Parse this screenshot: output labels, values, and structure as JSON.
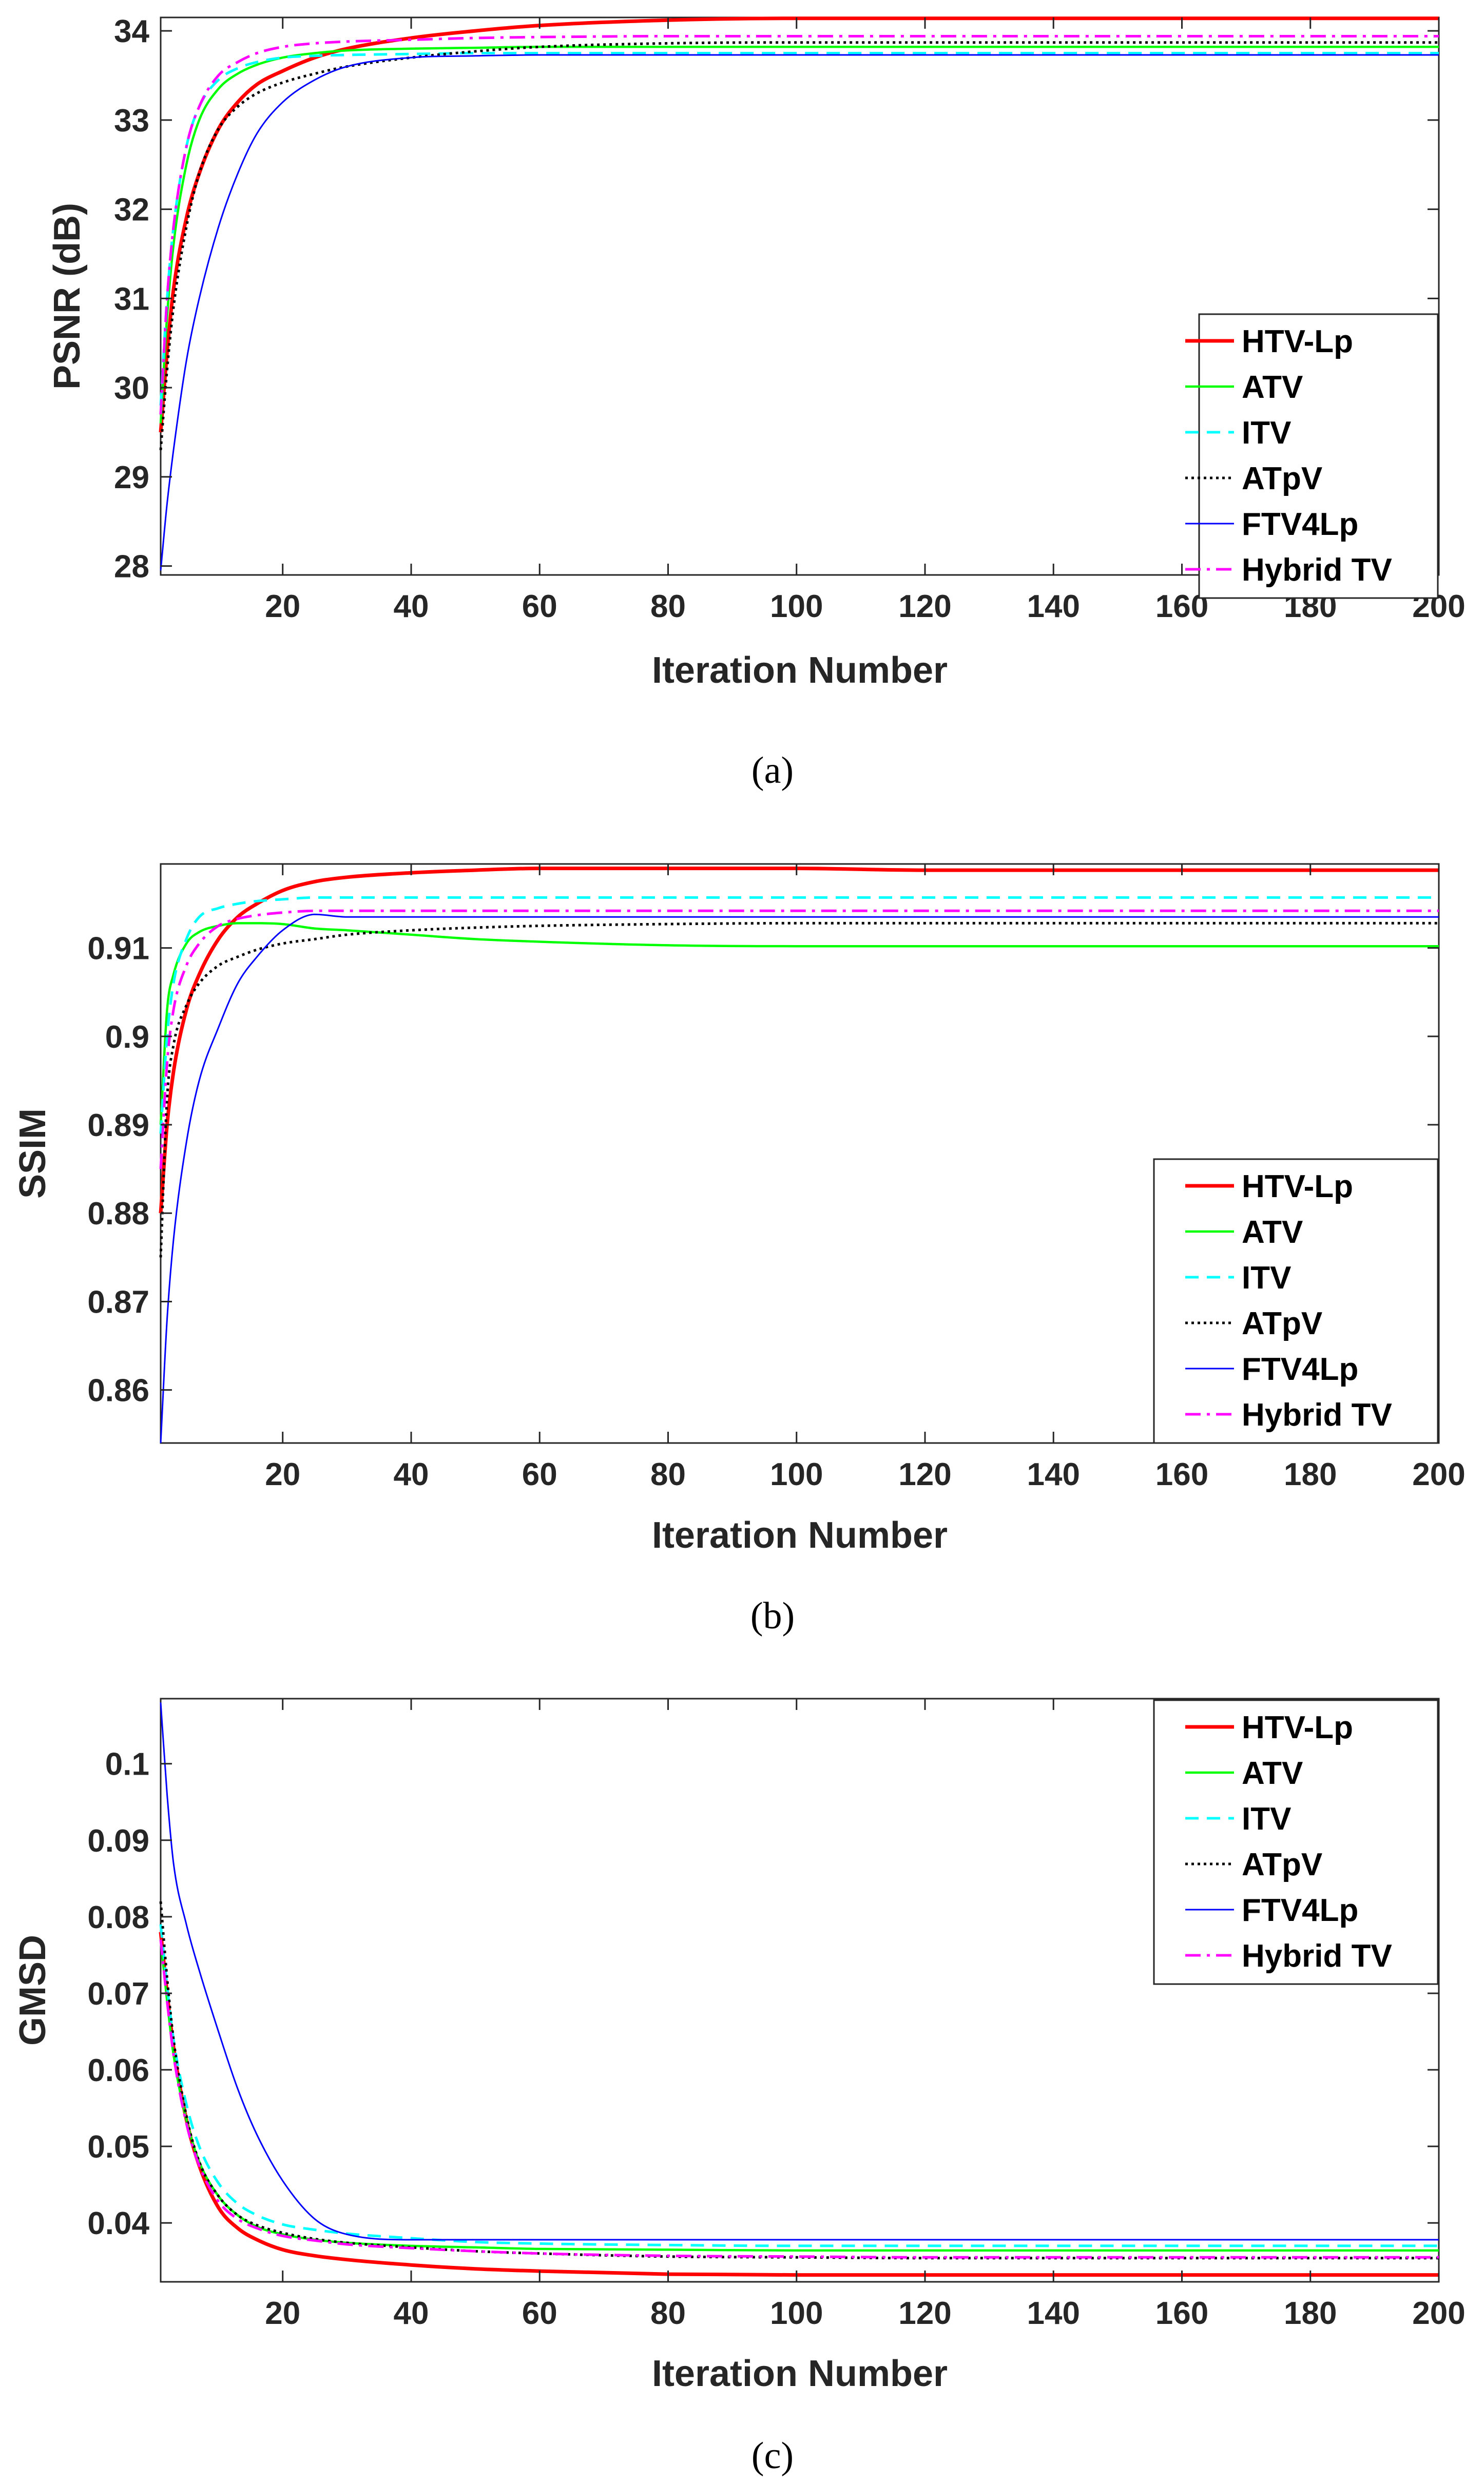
{
  "figure": {
    "panel_labels": [
      "(a)",
      "(b)",
      "(c)"
    ]
  },
  "legend": {
    "entries": [
      {
        "name": "HTV-Lp",
        "color": "#ff0000",
        "style": "solid"
      },
      {
        "name": "ATV",
        "color": "#00ff00",
        "style": "solid"
      },
      {
        "name": "ITV",
        "color": "#00ffff",
        "style": "dashed"
      },
      {
        "name": "ATpV",
        "color": "#000000",
        "style": "dotted"
      },
      {
        "name": "FTV4Lp",
        "color": "#0000ff",
        "style": "solid"
      },
      {
        "name": "Hybrid TV",
        "color": "#ff00ff",
        "style": "dashdot"
      }
    ]
  },
  "chart_data": [
    {
      "type": "line",
      "panel": "(a)",
      "xlabel": "Iteration Number",
      "ylabel": "PSNR (dB)",
      "xlim": [
        1,
        200
      ],
      "ylim": [
        27.9,
        34.15
      ],
      "xticks": [
        20,
        40,
        60,
        80,
        100,
        120,
        140,
        160,
        180,
        200
      ],
      "yticks": [
        28,
        29,
        30,
        31,
        32,
        33,
        34
      ],
      "x": [
        1,
        2,
        3,
        5,
        7,
        10,
        13,
        16,
        20,
        25,
        30,
        40,
        50,
        60,
        80,
        100,
        120,
        150,
        200
      ],
      "series": [
        {
          "name": "HTV-Lp",
          "values": [
            29.5,
            30.4,
            31.1,
            31.9,
            32.4,
            32.9,
            33.2,
            33.4,
            33.55,
            33.7,
            33.8,
            33.92,
            34.0,
            34.06,
            34.12,
            34.14,
            34.14,
            34.14,
            34.14
          ]
        },
        {
          "name": "ATV",
          "values": [
            29.6,
            30.8,
            31.6,
            32.5,
            33.0,
            33.35,
            33.52,
            33.62,
            33.7,
            33.75,
            33.78,
            33.8,
            33.81,
            33.82,
            33.82,
            33.82,
            33.82,
            33.82,
            33.82
          ]
        },
        {
          "name": "ITV",
          "values": [
            29.8,
            31.0,
            31.8,
            32.7,
            33.15,
            33.45,
            33.58,
            33.65,
            33.7,
            33.72,
            33.73,
            33.74,
            33.75,
            33.75,
            33.75,
            33.75,
            33.75,
            33.75,
            33.75
          ]
        },
        {
          "name": "ATpV",
          "values": [
            29.3,
            30.2,
            30.9,
            31.8,
            32.4,
            32.9,
            33.15,
            33.3,
            33.42,
            33.52,
            33.6,
            33.7,
            33.77,
            33.82,
            33.86,
            33.87,
            33.87,
            33.87,
            33.87
          ]
        },
        {
          "name": "FTV4Lp",
          "values": [
            27.95,
            28.7,
            29.3,
            30.3,
            31.0,
            31.8,
            32.4,
            32.85,
            33.2,
            33.45,
            33.6,
            33.7,
            33.72,
            33.73,
            33.73,
            33.73,
            33.73,
            33.73,
            33.73
          ]
        },
        {
          "name": "Hybrid TV",
          "values": [
            29.7,
            31.0,
            31.8,
            32.7,
            33.15,
            33.5,
            33.65,
            33.75,
            33.82,
            33.86,
            33.88,
            33.9,
            33.92,
            33.93,
            33.94,
            33.94,
            33.94,
            33.94,
            33.94
          ]
        }
      ]
    },
    {
      "type": "line",
      "panel": "(b)",
      "xlabel": "Iteration Number",
      "ylabel": "SSIM",
      "xlim": [
        1,
        200
      ],
      "ylim": [
        0.854,
        0.9195
      ],
      "xticks": [
        20,
        40,
        60,
        80,
        100,
        120,
        140,
        160,
        180,
        200
      ],
      "yticks": [
        0.86,
        0.87,
        0.88,
        0.89,
        0.9,
        0.91
      ],
      "ytick_labels": [
        "0.86",
        "0.87",
        "0.88",
        "0.89",
        "0.9",
        "0.91"
      ],
      "x": [
        1,
        2,
        3,
        5,
        7,
        10,
        13,
        16,
        20,
        25,
        30,
        40,
        50,
        60,
        80,
        100,
        120,
        150,
        200
      ],
      "series": [
        {
          "name": "HTV-Lp",
          "values": [
            0.88,
            0.89,
            0.896,
            0.903,
            0.907,
            0.911,
            0.9135,
            0.915,
            0.9165,
            0.9175,
            0.918,
            0.9185,
            0.9188,
            0.919,
            0.919,
            0.919,
            0.9188,
            0.9188,
            0.9188
          ]
        },
        {
          "name": "ATV",
          "values": [
            0.89,
            0.903,
            0.907,
            0.9105,
            0.9118,
            0.9125,
            0.9128,
            0.9128,
            0.9127,
            0.9122,
            0.912,
            0.9115,
            0.911,
            0.9107,
            0.9103,
            0.9102,
            0.9102,
            0.9102,
            0.9102
          ]
        },
        {
          "name": "ITV",
          "values": [
            0.889,
            0.9,
            0.906,
            0.911,
            0.9135,
            0.9145,
            0.915,
            0.9153,
            0.9155,
            0.9157,
            0.9157,
            0.9157,
            0.9157,
            0.9157,
            0.9157,
            0.9157,
            0.9157,
            0.9157,
            0.9157
          ]
        },
        {
          "name": "ATpV",
          "values": [
            0.875,
            0.893,
            0.899,
            0.9035,
            0.906,
            0.908,
            0.909,
            0.9098,
            0.9105,
            0.911,
            0.9115,
            0.912,
            0.9123,
            0.9125,
            0.9127,
            0.9128,
            0.9128,
            0.9128,
            0.9128
          ]
        },
        {
          "name": "FTV4Lp",
          "values": [
            0.854,
            0.868,
            0.877,
            0.888,
            0.895,
            0.901,
            0.906,
            0.909,
            0.912,
            0.9138,
            0.9135,
            0.9135,
            0.9135,
            0.9135,
            0.9135,
            0.9135,
            0.9135,
            0.9135,
            0.9135
          ]
        },
        {
          "name": "Hybrid TV",
          "values": [
            0.885,
            0.897,
            0.903,
            0.908,
            0.9105,
            0.9125,
            0.9133,
            0.9137,
            0.914,
            0.9142,
            0.9142,
            0.9142,
            0.9142,
            0.9142,
            0.9142,
            0.9142,
            0.9142,
            0.9142,
            0.9142
          ]
        }
      ]
    },
    {
      "type": "line",
      "panel": "(c)",
      "xlabel": "Iteration Number",
      "ylabel": "GMSD",
      "xlim": [
        1,
        200
      ],
      "ylim": [
        0.0323,
        0.1085
      ],
      "xticks": [
        20,
        40,
        60,
        80,
        100,
        120,
        140,
        160,
        180,
        200
      ],
      "yticks": [
        0.04,
        0.05,
        0.06,
        0.07,
        0.08,
        0.09,
        0.1
      ],
      "ytick_labels": [
        "0.04",
        "0.05",
        "0.06",
        "0.07",
        "0.08",
        "0.09",
        "0.1"
      ],
      "x": [
        1,
        2,
        3,
        5,
        7,
        10,
        13,
        16,
        20,
        25,
        30,
        40,
        50,
        60,
        80,
        100,
        120,
        150,
        200
      ],
      "series": [
        {
          "name": "HTV-Lp",
          "values": [
            0.078,
            0.07,
            0.063,
            0.0535,
            0.0475,
            0.042,
            0.0393,
            0.0378,
            0.0365,
            0.0357,
            0.0352,
            0.0345,
            0.034,
            0.0337,
            0.0333,
            0.0332,
            0.0332,
            0.0332,
            0.0332
          ]
        },
        {
          "name": "ATV",
          "values": [
            0.077,
            0.069,
            0.062,
            0.0535,
            0.048,
            0.0435,
            0.041,
            0.0395,
            0.0385,
            0.0378,
            0.0374,
            0.037,
            0.0368,
            0.0366,
            0.0365,
            0.0364,
            0.0364,
            0.0364,
            0.0364
          ]
        },
        {
          "name": "ITV",
          "values": [
            0.079,
            0.071,
            0.064,
            0.0555,
            0.05,
            0.0452,
            0.0425,
            0.041,
            0.0398,
            0.0391,
            0.0386,
            0.038,
            0.0375,
            0.0373,
            0.0371,
            0.037,
            0.037,
            0.037,
            0.037
          ]
        },
        {
          "name": "ATpV",
          "values": [
            0.082,
            0.072,
            0.064,
            0.054,
            0.048,
            0.0435,
            0.041,
            0.0397,
            0.0387,
            0.0379,
            0.0374,
            0.0368,
            0.0363,
            0.036,
            0.0356,
            0.0355,
            0.0354,
            0.0354,
            0.0354
          ]
        },
        {
          "name": "FTV4Lp",
          "values": [
            0.108,
            0.096,
            0.087,
            0.079,
            0.073,
            0.065,
            0.0575,
            0.0515,
            0.0455,
            0.0405,
            0.0385,
            0.0378,
            0.0378,
            0.0378,
            0.0378,
            0.0378,
            0.0378,
            0.0378,
            0.0378
          ]
        },
        {
          "name": "Hybrid TV",
          "values": [
            0.077,
            0.069,
            0.062,
            0.053,
            0.0475,
            0.0428,
            0.0405,
            0.0393,
            0.0383,
            0.0377,
            0.0372,
            0.0367,
            0.0363,
            0.036,
            0.0357,
            0.0356,
            0.0355,
            0.0355,
            0.0355
          ]
        }
      ]
    }
  ]
}
